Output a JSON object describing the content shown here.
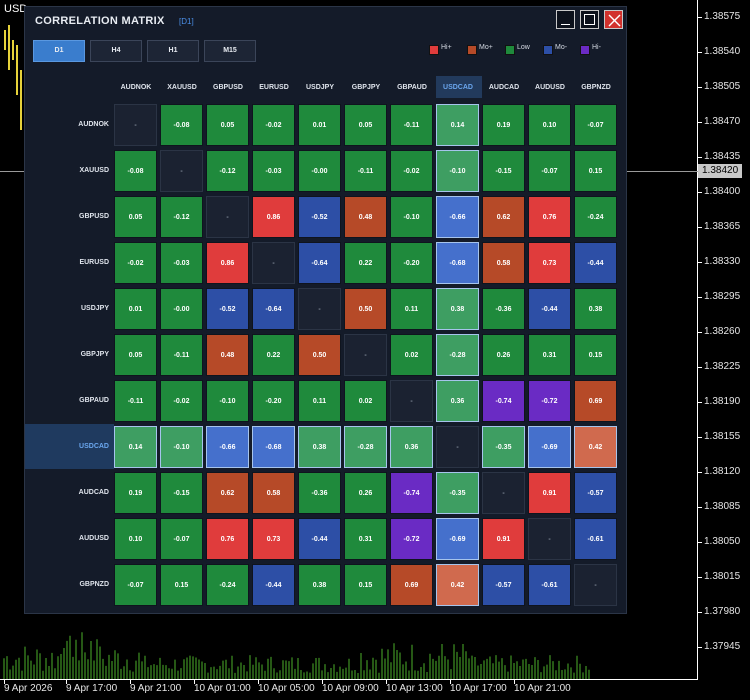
{
  "chart": {
    "symbol": "USD",
    "current_price": "1.38420",
    "price_ticks": [
      "1.38575",
      "1.38540",
      "1.38505",
      "1.38470",
      "1.38435",
      "1.38400",
      "1.38365",
      "1.38330",
      "1.38295",
      "1.38260",
      "1.38225",
      "1.38190",
      "1.38155",
      "1.38120",
      "1.38085",
      "1.38050",
      "1.38015",
      "1.37980",
      "1.37945"
    ],
    "time_ticks": [
      "9 Apr 2026",
      "9 Apr 17:00",
      "9 Apr 21:00",
      "10 Apr 01:00",
      "10 Apr 05:00",
      "10 Apr 09:00",
      "10 Apr 13:00",
      "10 Apr 17:00",
      "10 Apr 21:00"
    ]
  },
  "panel": {
    "title": "CORRELATION MATRIX",
    "timeframe_badge": "[D1]",
    "tabs": [
      {
        "label": "D1",
        "active": true
      },
      {
        "label": "H4",
        "active": false
      },
      {
        "label": "H1",
        "active": false
      },
      {
        "label": "M15",
        "active": false
      }
    ],
    "legend": [
      {
        "label": "Hi+",
        "color": "#e03c3c"
      },
      {
        "label": "Mo+",
        "color": "#b64a28"
      },
      {
        "label": "Low",
        "color": "#1f8a3c"
      },
      {
        "label": "Mo-",
        "color": "#2d4fa6"
      },
      {
        "label": "Hi-",
        "color": "#6a2bc4"
      }
    ],
    "symbols": [
      "AUDNOK",
      "XAUUSD",
      "GBPUSD",
      "EURUSD",
      "USDJPY",
      "GBPJPY",
      "GBPAUD",
      "USDCAD",
      "AUDCAD",
      "AUDUSD",
      "GBPNZD"
    ],
    "highlight_index": 7,
    "diagonal_text": "-",
    "matrix": [
      [
        "-",
        "-0.08",
        "0.05",
        "-0.02",
        "0.01",
        "0.05",
        "-0.11",
        "0.14",
        "0.19",
        "0.10",
        "-0.07"
      ],
      [
        "-0.08",
        "-",
        "-0.12",
        "-0.03",
        "-0.00",
        "-0.11",
        "-0.02",
        "-0.10",
        "-0.15",
        "-0.07",
        "0.15"
      ],
      [
        "0.05",
        "-0.12",
        "-",
        "0.86",
        "-0.52",
        "0.48",
        "-0.10",
        "-0.66",
        "0.62",
        "0.76",
        "-0.24"
      ],
      [
        "-0.02",
        "-0.03",
        "0.86",
        "-",
        "-0.64",
        "0.22",
        "-0.20",
        "-0.68",
        "0.58",
        "0.73",
        "-0.44"
      ],
      [
        "0.01",
        "-0.00",
        "-0.52",
        "-0.64",
        "-",
        "0.50",
        "0.11",
        "0.38",
        "-0.36",
        "-0.44",
        "0.38"
      ],
      [
        "0.05",
        "-0.11",
        "0.48",
        "0.22",
        "0.50",
        "-",
        "0.02",
        "-0.28",
        "0.26",
        "0.31",
        "0.15"
      ],
      [
        "-0.11",
        "-0.02",
        "-0.10",
        "-0.20",
        "0.11",
        "0.02",
        "-",
        "0.36",
        "-0.74",
        "-0.72",
        "0.69"
      ],
      [
        "0.14",
        "-0.10",
        "-0.66",
        "-0.68",
        "0.38",
        "-0.28",
        "0.36",
        "-",
        "-0.35",
        "-0.69",
        "0.42"
      ],
      [
        "0.19",
        "-0.15",
        "0.62",
        "0.58",
        "-0.36",
        "0.26",
        "-0.74",
        "-0.35",
        "-",
        "0.91",
        "-0.57"
      ],
      [
        "0.10",
        "-0.07",
        "0.76",
        "0.73",
        "-0.44",
        "0.31",
        "-0.72",
        "-0.69",
        "0.91",
        "-",
        "-0.61"
      ],
      [
        "-0.07",
        "0.15",
        "-0.24",
        "-0.44",
        "0.38",
        "0.15",
        "0.69",
        "0.42",
        "-0.57",
        "-0.61",
        "-"
      ]
    ],
    "cell_colors": {
      "hi_pos": "#e03c3c",
      "mo_pos": "#b64a28",
      "low": "#1f8a3c",
      "mo_neg": "#2d4fa6",
      "hi_neg": "#6a2bc4",
      "hl_low": "#3e9e62",
      "hl_mo_neg": "#4570cc",
      "hl_mo_pos": "#d06a4e"
    }
  }
}
